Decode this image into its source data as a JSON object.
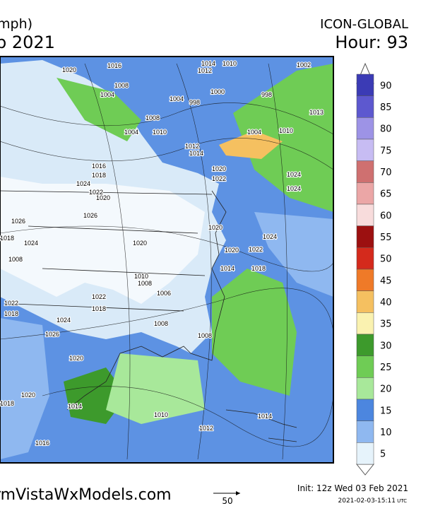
{
  "header": {
    "units": "mph)",
    "date": "b 2021",
    "model": "ICON-GLOBAL",
    "hour": "Hour: 93"
  },
  "colorbar": {
    "entries": [
      {
        "value": 90,
        "color": "#3b3bb5"
      },
      {
        "value": 85,
        "color": "#5d58cf"
      },
      {
        "value": 80,
        "color": "#9d93e6"
      },
      {
        "value": 75,
        "color": "#c7bcf3"
      },
      {
        "value": 70,
        "color": "#cf7070"
      },
      {
        "value": 65,
        "color": "#eba6a6"
      },
      {
        "value": 60,
        "color": "#f8dcdc"
      },
      {
        "value": 55,
        "color": "#9c1010"
      },
      {
        "value": 50,
        "color": "#d42a1c"
      },
      {
        "value": 45,
        "color": "#ef7a28"
      },
      {
        "value": 40,
        "color": "#f5c060"
      },
      {
        "value": 35,
        "color": "#faf2b0"
      },
      {
        "value": 30,
        "color": "#3d9a2c"
      },
      {
        "value": 25,
        "color": "#6fcc55"
      },
      {
        "value": 20,
        "color": "#a8e89a"
      },
      {
        "value": 15,
        "color": "#4c86df"
      },
      {
        "value": 10,
        "color": "#8fb8f0"
      },
      {
        "value": 5,
        "color": "#e6f3fb"
      }
    ]
  },
  "isobar_labels": [
    "1020",
    "1016",
    "1008",
    "1004",
    "1004",
    "1008",
    "1010",
    "1004",
    "998",
    "1014",
    "1010",
    "1000",
    "998",
    "1002",
    "1012",
    "1013",
    "1004",
    "1010",
    "1012",
    "1014",
    "1016",
    "1018",
    "1020",
    "1024",
    "1022",
    "1020",
    "1022",
    "1024",
    "1026",
    "1024",
    "1026",
    "1018",
    "1024",
    "1020",
    "1020",
    "1022",
    "1024",
    "1020",
    "1014",
    "1018",
    "1010",
    "1008",
    "1006",
    "1022",
    "1018",
    "1008",
    "1008",
    "1024",
    "1026",
    "1020",
    "1022",
    "1018",
    "1020",
    "1014",
    "1018",
    "1010",
    "1014",
    "1012",
    "1016",
    "1008"
  ],
  "footer": {
    "site": "rmVistaWxModels.com",
    "scale": "50",
    "init": "Init: 12z Wed 03 Feb 2021",
    "timestamp": "2021-02-03-15:11",
    "tz": "UTC"
  }
}
